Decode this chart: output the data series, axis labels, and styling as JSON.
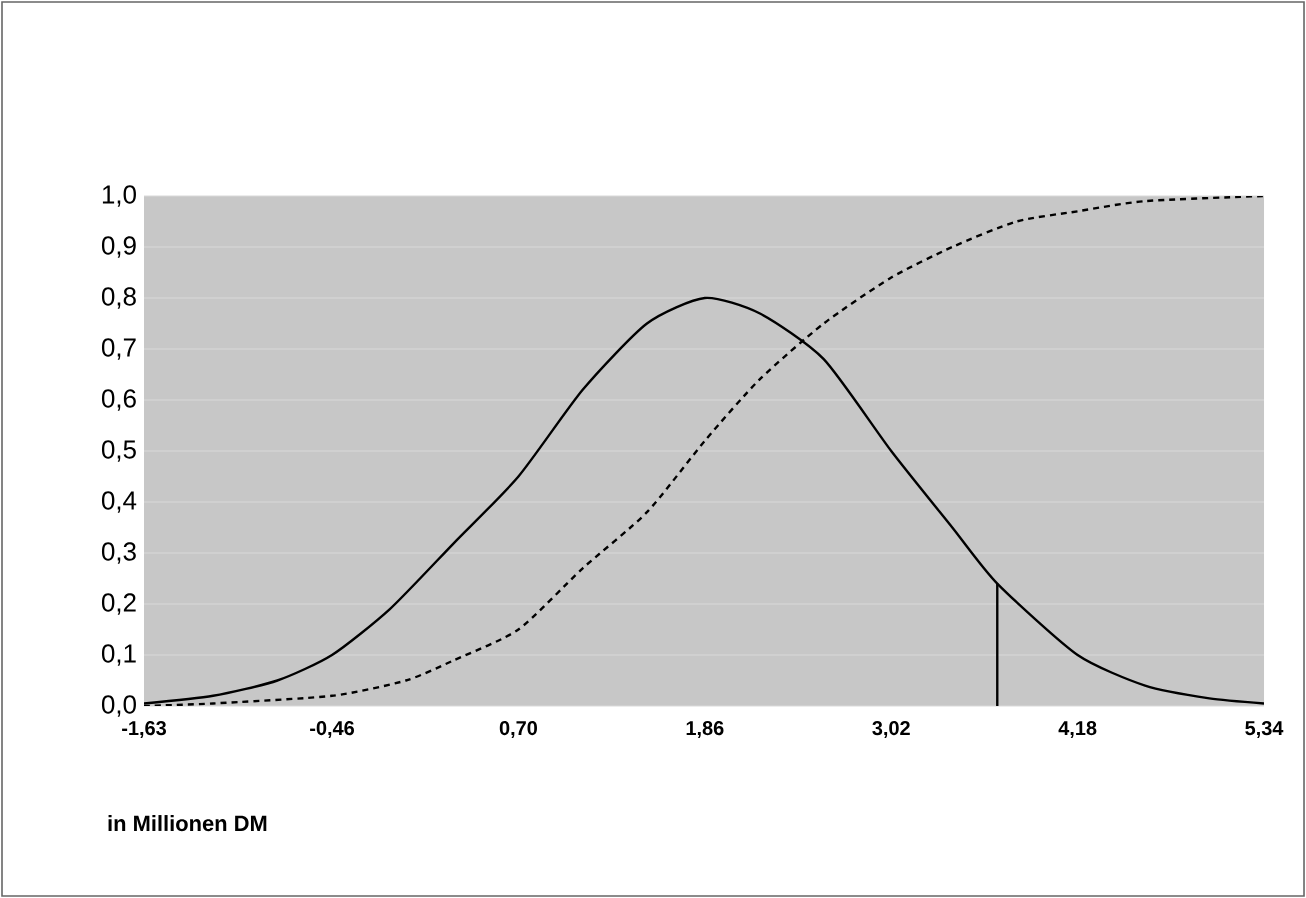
{
  "chart_data": {
    "type": "line",
    "xlabel": "in Millionen DM",
    "series": [
      {
        "color": "#000000",
        "line_style": "solid",
        "x": [
          -1.63,
          -1.2,
          -0.8,
          -0.46,
          -0.1,
          0.3,
          0.7,
          1.1,
          1.5,
          1.86,
          2.2,
          2.6,
          3.02,
          3.4,
          3.68,
          4.18,
          4.6,
          5.0,
          5.34
        ],
        "values": [
          0.005,
          0.02,
          0.05,
          0.1,
          0.19,
          0.32,
          0.45,
          0.62,
          0.75,
          0.8,
          0.77,
          0.68,
          0.5,
          0.35,
          0.24,
          0.1,
          0.04,
          0.015,
          0.005
        ]
      },
      {
        "color": "#000000",
        "line_style": "dashed",
        "x": [
          -1.63,
          -1.2,
          -0.46,
          0.0,
          0.3,
          0.7,
          1.1,
          1.5,
          1.86,
          2.2,
          2.6,
          3.02,
          3.4,
          3.8,
          4.18,
          4.6,
          5.34
        ],
        "values": [
          0,
          0.005,
          0.02,
          0.05,
          0.09,
          0.15,
          0.27,
          0.38,
          0.52,
          0.64,
          0.75,
          0.84,
          0.9,
          0.95,
          0.97,
          0.99,
          1.0
        ]
      },
      {
        "color": "#000000",
        "line_style": "solid",
        "x": [
          3.68,
          3.68
        ],
        "values": [
          0,
          0.24
        ]
      }
    ],
    "xlim": [
      -1.63,
      5.34
    ],
    "xticks": [
      {
        "value": -1.63,
        "label": "-1,63"
      },
      {
        "value": -0.46,
        "label": "-0,46"
      },
      {
        "value": 0.7,
        "label": "0,70"
      },
      {
        "value": 1.86,
        "label": "1,86"
      },
      {
        "value": 3.02,
        "label": "3,02"
      },
      {
        "value": 4.18,
        "label": "4,18"
      },
      {
        "value": 5.34,
        "label": "5,34"
      }
    ],
    "ylim": [
      0,
      1
    ],
    "yticks": [
      {
        "value": 0,
        "label": "0,0"
      },
      {
        "value": 0.1,
        "label": "0,1"
      },
      {
        "value": 0.2,
        "label": "0,2"
      },
      {
        "value": 0.3,
        "label": "0,3"
      },
      {
        "value": 0.4,
        "label": "0,4"
      },
      {
        "value": 0.5,
        "label": "0,5"
      },
      {
        "value": 0.6,
        "label": "0,6"
      },
      {
        "value": 0.7,
        "label": "0,7"
      },
      {
        "value": 0.8,
        "label": "0,8"
      },
      {
        "value": 0.9,
        "label": "0,9"
      },
      {
        "value": 1,
        "label": "1,0"
      }
    ],
    "grid": "y",
    "marker": "none"
  }
}
